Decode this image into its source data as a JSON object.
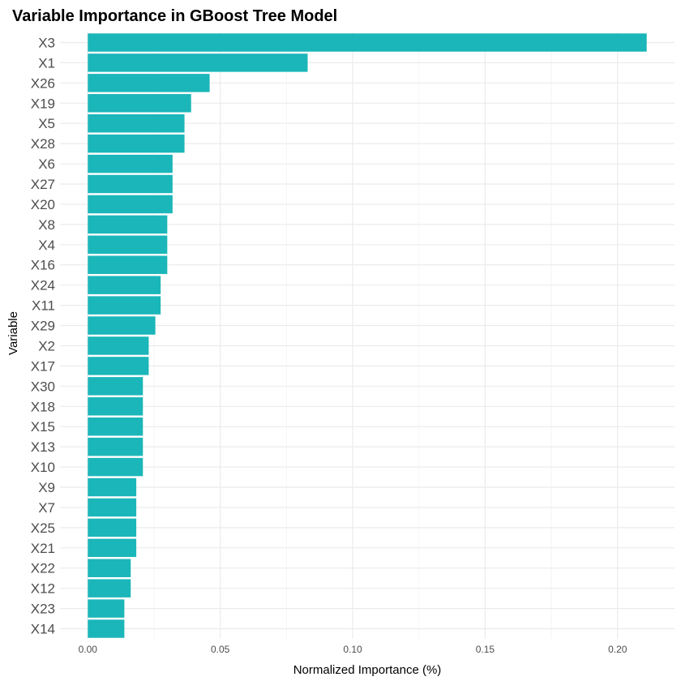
{
  "chart_data": {
    "type": "bar",
    "orientation": "horizontal",
    "title": "Variable Importance in GBoost Tree Model",
    "xlabel": "Normalized Importance (%)",
    "ylabel": "Variable",
    "categories": [
      "X3",
      "X1",
      "X26",
      "X19",
      "X5",
      "X28",
      "X6",
      "X27",
      "X20",
      "X8",
      "X4",
      "X16",
      "X24",
      "X11",
      "X29",
      "X2",
      "X17",
      "X30",
      "X18",
      "X15",
      "X13",
      "X10",
      "X9",
      "X7",
      "X25",
      "X21",
      "X22",
      "X12",
      "X23",
      "X14"
    ],
    "values": [
      0.211,
      0.083,
      0.046,
      0.039,
      0.0365,
      0.0365,
      0.032,
      0.032,
      0.032,
      0.03,
      0.03,
      0.03,
      0.0275,
      0.0275,
      0.0255,
      0.023,
      0.023,
      0.0208,
      0.0208,
      0.0208,
      0.0208,
      0.0208,
      0.0183,
      0.0183,
      0.0183,
      0.0183,
      0.0162,
      0.0162,
      0.0138,
      0.0138
    ],
    "xlim": [
      -0.0105,
      0.2215
    ],
    "xticks": [
      0.0,
      0.05,
      0.1,
      0.15,
      0.2
    ],
    "xtick_labels": [
      "0.00",
      "0.05",
      "0.10",
      "0.15",
      "0.20"
    ],
    "grid": true,
    "legend": "none",
    "bar_color": "#1bb6b9"
  }
}
